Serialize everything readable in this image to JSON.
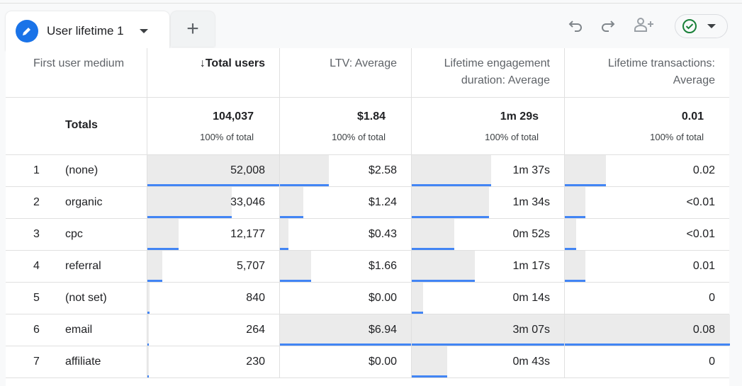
{
  "tab": {
    "label": "User lifetime 1",
    "add_label": "+"
  },
  "toolbar": {
    "undo": "undo-icon",
    "redo": "redo-icon",
    "share": "share-users-icon",
    "status": "check-circle-icon",
    "accent": "#1a73e8",
    "bar_color": "#4285f4",
    "check_color": "#188038"
  },
  "headers": [
    "First user medium",
    "↓Total users",
    "LTV: Average",
    "Lifetime engagement duration: Average",
    "Lifetime transactions: Average"
  ],
  "totals": {
    "label": "Totals",
    "values": [
      "104,037",
      "$1.84",
      "1m 29s",
      "0.01"
    ],
    "subs": [
      "100% of total",
      "100% of total",
      "100% of total",
      "100% of total"
    ]
  },
  "rows": [
    {
      "n": "1",
      "name": "(none)",
      "values": [
        "52,008",
        "$2.58",
        "1m 37s",
        "0.02"
      ],
      "fill": [
        1,
        0.372,
        0.519,
        0.25
      ]
    },
    {
      "n": "2",
      "name": "organic",
      "values": [
        "33,046",
        "$1.24",
        "1m 34s",
        "<0.01"
      ],
      "fill": [
        0.635,
        0.179,
        0.503,
        0.125
      ]
    },
    {
      "n": "3",
      "name": "cpc",
      "values": [
        "12,177",
        "$0.43",
        "0m 52s",
        "<0.01"
      ],
      "fill": [
        0.234,
        0.062,
        0.278,
        0.07
      ]
    },
    {
      "n": "4",
      "name": "referral",
      "values": [
        "5,707",
        "$1.66",
        "1m 17s",
        "0.01"
      ],
      "fill": [
        0.11,
        0.239,
        0.412,
        0.125
      ]
    },
    {
      "n": "5",
      "name": "(not set)",
      "values": [
        "840",
        "$0.00",
        "0m 14s",
        "0"
      ],
      "fill": [
        0.016,
        0,
        0.075,
        0
      ]
    },
    {
      "n": "6",
      "name": "email",
      "values": [
        "264",
        "$6.94",
        "3m 07s",
        "0.08"
      ],
      "fill": [
        0.005,
        1,
        1,
        1
      ]
    },
    {
      "n": "7",
      "name": "affiliate",
      "values": [
        "230",
        "$0.00",
        "0m 43s",
        "0"
      ],
      "fill": [
        0.0044,
        0,
        0.23,
        0
      ]
    }
  ]
}
